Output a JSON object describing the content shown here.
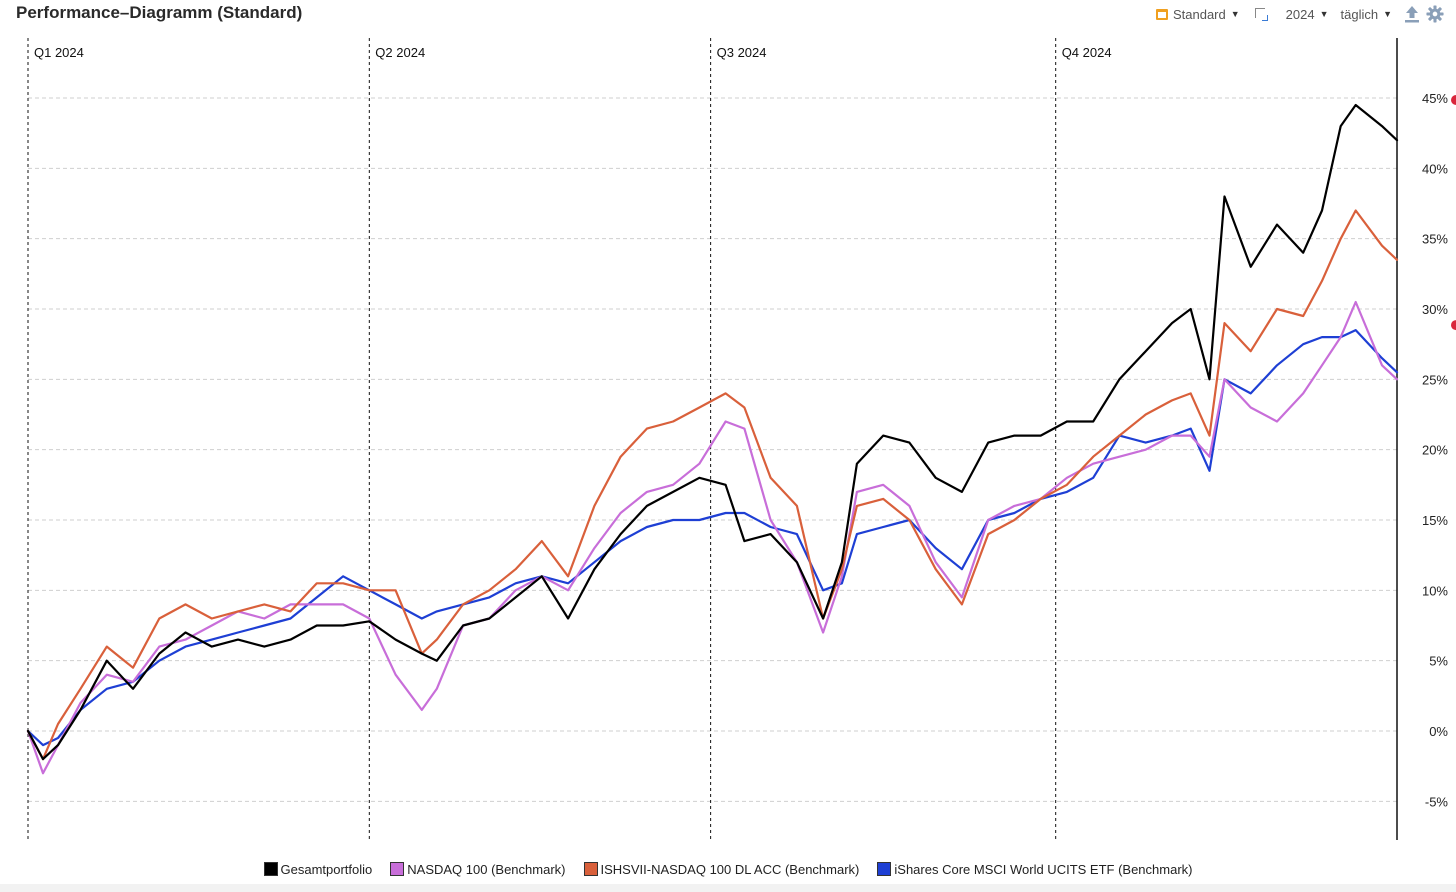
{
  "header": {
    "title": "Performance–Diagramm (Standard)",
    "view_label": "Standard",
    "year_label": "2024",
    "interval_label": "täglich"
  },
  "icons": {
    "calendar": "calendar-icon",
    "expand": "expand-icon",
    "export": "export-icon",
    "settings": "gear-icon"
  },
  "chart_data": {
    "type": "line",
    "title": "",
    "xlabel": "",
    "ylabel": "",
    "x_range": [
      "2024-01-01",
      "2024-12-31"
    ],
    "ylim": [
      -8,
      48
    ],
    "grid": true,
    "legend_position": "bottom",
    "quarter_labels": [
      {
        "label": "Q1 2024",
        "date": "2024-01-01"
      },
      {
        "label": "Q2 2024",
        "date": "2024-04-01"
      },
      {
        "label": "Q3 2024",
        "date": "2024-07-01"
      },
      {
        "label": "Q4 2024",
        "date": "2024-10-01"
      }
    ],
    "y_ticks": [
      {
        "value": -5,
        "label": "-5%"
      },
      {
        "value": 0,
        "label": "0%"
      },
      {
        "value": 5,
        "label": "5%"
      },
      {
        "value": 10,
        "label": "10%"
      },
      {
        "value": 15,
        "label": "15%"
      },
      {
        "value": 20,
        "label": "20%"
      },
      {
        "value": 25,
        "label": "25%"
      },
      {
        "value": 30,
        "label": "30%"
      },
      {
        "value": 35,
        "label": "35%"
      },
      {
        "value": 40,
        "label": "40%"
      },
      {
        "value": 45,
        "label": "45%"
      }
    ],
    "series": [
      {
        "name": "Gesamtportfolio",
        "color": "#000000",
        "x": [
          "2024-01-01",
          "2024-01-05",
          "2024-01-09",
          "2024-01-15",
          "2024-01-22",
          "2024-01-29",
          "2024-02-05",
          "2024-02-12",
          "2024-02-19",
          "2024-02-26",
          "2024-03-04",
          "2024-03-11",
          "2024-03-18",
          "2024-03-25",
          "2024-04-01",
          "2024-04-08",
          "2024-04-15",
          "2024-04-19",
          "2024-04-26",
          "2024-05-03",
          "2024-05-10",
          "2024-05-17",
          "2024-05-24",
          "2024-05-31",
          "2024-06-07",
          "2024-06-14",
          "2024-06-21",
          "2024-06-28",
          "2024-07-05",
          "2024-07-10",
          "2024-07-17",
          "2024-07-24",
          "2024-07-31",
          "2024-08-05",
          "2024-08-09",
          "2024-08-16",
          "2024-08-23",
          "2024-08-30",
          "2024-09-06",
          "2024-09-13",
          "2024-09-20",
          "2024-09-27",
          "2024-10-04",
          "2024-10-11",
          "2024-10-18",
          "2024-10-25",
          "2024-11-01",
          "2024-11-06",
          "2024-11-11",
          "2024-11-15",
          "2024-11-22",
          "2024-11-29",
          "2024-12-06",
          "2024-12-11",
          "2024-12-16",
          "2024-12-20",
          "2024-12-27",
          "2024-12-31"
        ],
        "values": [
          0.0,
          -2.0,
          -1.0,
          1.5,
          5.0,
          3.0,
          5.5,
          7.0,
          6.0,
          6.5,
          6.0,
          6.5,
          7.5,
          7.5,
          7.8,
          6.5,
          5.5,
          5.0,
          7.5,
          8.0,
          9.5,
          11.0,
          8.0,
          11.5,
          14.0,
          16.0,
          17.0,
          18.0,
          17.5,
          13.5,
          14.0,
          12.0,
          8.0,
          12.0,
          19.0,
          21.0,
          20.5,
          18.0,
          17.0,
          20.5,
          21.0,
          21.0,
          22.0,
          22.0,
          25.0,
          27.0,
          29.0,
          30.0,
          25.0,
          38.0,
          33.0,
          36.0,
          34.0,
          37.0,
          43.0,
          44.5,
          43.0,
          42.0
        ]
      },
      {
        "name": "NASDAQ 100 (Benchmark)",
        "color": "#c86ed9",
        "x": [
          "2024-01-01",
          "2024-01-05",
          "2024-01-09",
          "2024-01-15",
          "2024-01-22",
          "2024-01-29",
          "2024-02-05",
          "2024-02-12",
          "2024-02-19",
          "2024-02-26",
          "2024-03-04",
          "2024-03-11",
          "2024-03-18",
          "2024-03-25",
          "2024-04-01",
          "2024-04-08",
          "2024-04-15",
          "2024-04-19",
          "2024-04-26",
          "2024-05-03",
          "2024-05-10",
          "2024-05-17",
          "2024-05-24",
          "2024-05-31",
          "2024-06-07",
          "2024-06-14",
          "2024-06-21",
          "2024-06-28",
          "2024-07-05",
          "2024-07-10",
          "2024-07-17",
          "2024-07-24",
          "2024-07-31",
          "2024-08-05",
          "2024-08-09",
          "2024-08-16",
          "2024-08-23",
          "2024-08-30",
          "2024-09-06",
          "2024-09-13",
          "2024-09-20",
          "2024-09-27",
          "2024-10-04",
          "2024-10-11",
          "2024-10-18",
          "2024-10-25",
          "2024-11-01",
          "2024-11-06",
          "2024-11-11",
          "2024-11-15",
          "2024-11-22",
          "2024-11-29",
          "2024-12-06",
          "2024-12-11",
          "2024-12-16",
          "2024-12-20",
          "2024-12-27",
          "2024-12-31"
        ],
        "values": [
          0.0,
          -3.0,
          -1.0,
          2.0,
          4.0,
          3.5,
          6.0,
          6.5,
          7.5,
          8.5,
          8.0,
          9.0,
          9.0,
          9.0,
          8.0,
          4.0,
          1.5,
          3.0,
          7.5,
          8.0,
          10.0,
          11.0,
          10.0,
          13.0,
          15.5,
          17.0,
          17.5,
          19.0,
          22.0,
          21.5,
          15.0,
          12.0,
          7.0,
          11.0,
          17.0,
          17.5,
          16.0,
          12.0,
          9.5,
          15.0,
          16.0,
          16.5,
          18.0,
          19.0,
          19.5,
          20.0,
          21.0,
          21.0,
          19.5,
          25.0,
          23.0,
          22.0,
          24.0,
          26.0,
          28.0,
          30.5,
          26.0,
          25.0
        ]
      },
      {
        "name": "ISHSVII-NASDAQ 100 DL ACC (Benchmark)",
        "color": "#d9603b",
        "x": [
          "2024-01-01",
          "2024-01-05",
          "2024-01-09",
          "2024-01-15",
          "2024-01-22",
          "2024-01-29",
          "2024-02-05",
          "2024-02-12",
          "2024-02-19",
          "2024-02-26",
          "2024-03-04",
          "2024-03-11",
          "2024-03-18",
          "2024-03-25",
          "2024-04-01",
          "2024-04-08",
          "2024-04-15",
          "2024-04-19",
          "2024-04-26",
          "2024-05-03",
          "2024-05-10",
          "2024-05-17",
          "2024-05-24",
          "2024-05-31",
          "2024-06-07",
          "2024-06-14",
          "2024-06-21",
          "2024-06-28",
          "2024-07-05",
          "2024-07-10",
          "2024-07-17",
          "2024-07-24",
          "2024-07-31",
          "2024-08-05",
          "2024-08-09",
          "2024-08-16",
          "2024-08-23",
          "2024-08-30",
          "2024-09-06",
          "2024-09-13",
          "2024-09-20",
          "2024-09-27",
          "2024-10-04",
          "2024-10-11",
          "2024-10-18",
          "2024-10-25",
          "2024-11-01",
          "2024-11-06",
          "2024-11-11",
          "2024-11-15",
          "2024-11-22",
          "2024-11-29",
          "2024-12-06",
          "2024-12-11",
          "2024-12-16",
          "2024-12-20",
          "2024-12-27",
          "2024-12-31"
        ],
        "values": [
          0.0,
          -2.0,
          0.5,
          3.0,
          6.0,
          4.5,
          8.0,
          9.0,
          8.0,
          8.5,
          9.0,
          8.5,
          10.5,
          10.5,
          10.0,
          10.0,
          5.5,
          6.5,
          9.0,
          10.0,
          11.5,
          13.5,
          11.0,
          16.0,
          19.5,
          21.5,
          22.0,
          23.0,
          24.0,
          23.0,
          18.0,
          16.0,
          8.0,
          11.5,
          16.0,
          16.5,
          15.0,
          11.5,
          9.0,
          14.0,
          15.0,
          16.5,
          17.5,
          19.5,
          21.0,
          22.5,
          23.5,
          24.0,
          21.0,
          29.0,
          27.0,
          30.0,
          29.5,
          32.0,
          35.0,
          37.0,
          34.5,
          33.5
        ]
      },
      {
        "name": "iShares Core MSCI World UCITS ETF (Benchmark)",
        "color": "#1e3fd4",
        "x": [
          "2024-01-01",
          "2024-01-05",
          "2024-01-09",
          "2024-01-15",
          "2024-01-22",
          "2024-01-29",
          "2024-02-05",
          "2024-02-12",
          "2024-02-19",
          "2024-02-26",
          "2024-03-04",
          "2024-03-11",
          "2024-03-18",
          "2024-03-25",
          "2024-04-01",
          "2024-04-08",
          "2024-04-15",
          "2024-04-19",
          "2024-04-26",
          "2024-05-03",
          "2024-05-10",
          "2024-05-17",
          "2024-05-24",
          "2024-05-31",
          "2024-06-07",
          "2024-06-14",
          "2024-06-21",
          "2024-06-28",
          "2024-07-05",
          "2024-07-10",
          "2024-07-17",
          "2024-07-24",
          "2024-07-31",
          "2024-08-05",
          "2024-08-09",
          "2024-08-16",
          "2024-08-23",
          "2024-08-30",
          "2024-09-06",
          "2024-09-13",
          "2024-09-20",
          "2024-09-27",
          "2024-10-04",
          "2024-10-11",
          "2024-10-18",
          "2024-10-25",
          "2024-11-01",
          "2024-11-06",
          "2024-11-11",
          "2024-11-15",
          "2024-11-22",
          "2024-11-29",
          "2024-12-06",
          "2024-12-11",
          "2024-12-16",
          "2024-12-20",
          "2024-12-27",
          "2024-12-31"
        ],
        "values": [
          0.0,
          -1.0,
          -0.5,
          1.5,
          3.0,
          3.5,
          5.0,
          6.0,
          6.5,
          7.0,
          7.5,
          8.0,
          9.5,
          11.0,
          10.0,
          9.0,
          8.0,
          8.5,
          9.0,
          9.5,
          10.5,
          11.0,
          10.5,
          12.0,
          13.5,
          14.5,
          15.0,
          15.0,
          15.5,
          15.5,
          14.5,
          14.0,
          10.0,
          10.5,
          14.0,
          14.5,
          15.0,
          13.0,
          11.5,
          15.0,
          15.5,
          16.5,
          17.0,
          18.0,
          21.0,
          20.5,
          21.0,
          21.5,
          18.5,
          25.0,
          24.0,
          26.0,
          27.5,
          28.0,
          28.0,
          28.5,
          26.5,
          25.5
        ]
      }
    ]
  }
}
